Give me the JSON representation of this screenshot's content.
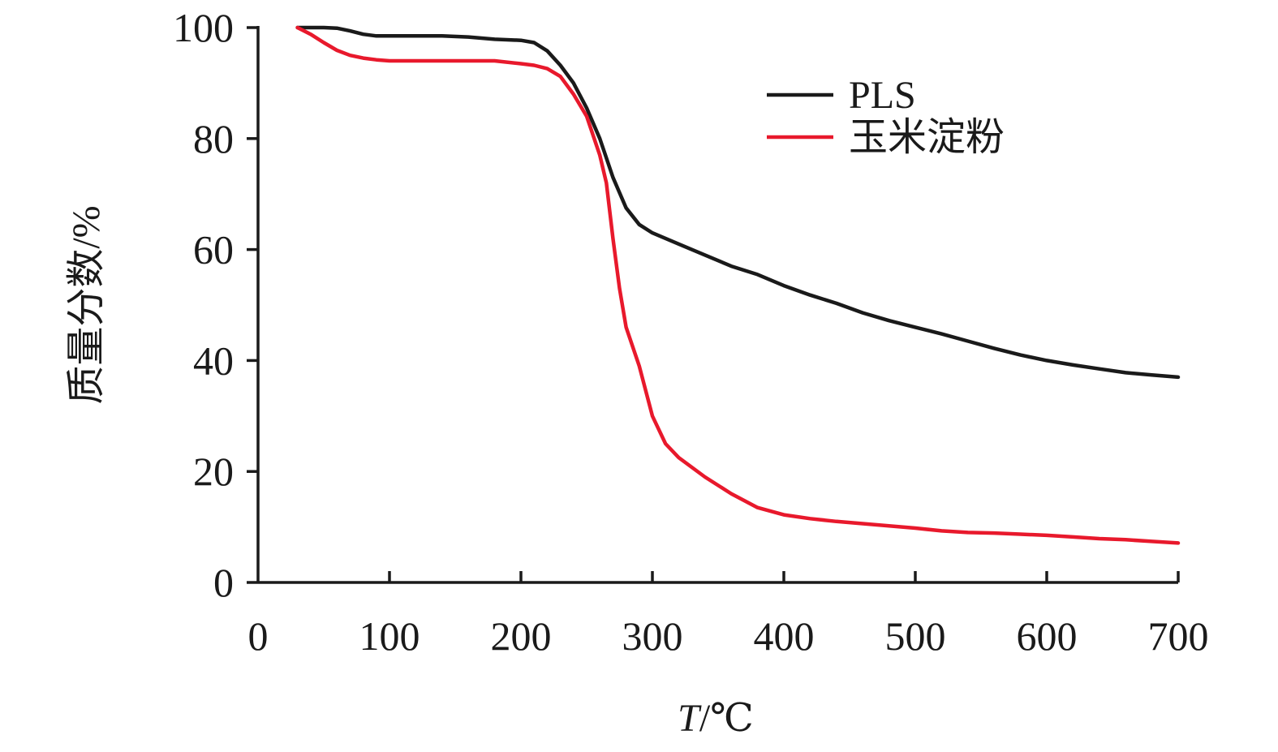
{
  "chart_data": {
    "type": "line",
    "xlabel": "T/℃",
    "ylabel": "质量分数/%",
    "xlim": [
      0,
      700
    ],
    "ylim": [
      0,
      100
    ],
    "xticks": [
      0,
      100,
      200,
      300,
      400,
      500,
      600,
      700
    ],
    "yticks": [
      0,
      20,
      40,
      60,
      80,
      100
    ],
    "grid": false,
    "legend": "top-right",
    "series": [
      {
        "name": "PLS",
        "color": "#1a1a1a",
        "x": [
          30,
          40,
          50,
          60,
          70,
          80,
          90,
          100,
          120,
          140,
          160,
          180,
          200,
          210,
          220,
          230,
          240,
          250,
          260,
          270,
          280,
          290,
          300,
          310,
          320,
          340,
          360,
          380,
          400,
          420,
          440,
          460,
          480,
          500,
          520,
          540,
          560,
          580,
          600,
          620,
          640,
          660,
          680,
          700
        ],
        "y": [
          100,
          100,
          100,
          99.9,
          99.4,
          98.8,
          98.5,
          98.5,
          98.5,
          98.5,
          98.3,
          97.9,
          97.7,
          97.3,
          95.8,
          93.2,
          90,
          85.5,
          80,
          73,
          67.5,
          64.5,
          63,
          62,
          61,
          59,
          57,
          55.5,
          53.5,
          51.8,
          50.3,
          48.6,
          47.2,
          46,
          44.8,
          43.5,
          42.2,
          41,
          40,
          39.2,
          38.5,
          37.8,
          37.4,
          37
        ]
      },
      {
        "name": "玉米淀粉",
        "color": "#e8192c",
        "x": [
          30,
          40,
          50,
          60,
          70,
          80,
          90,
          100,
          120,
          140,
          160,
          180,
          200,
          210,
          220,
          230,
          240,
          250,
          260,
          265,
          270,
          275,
          280,
          290,
          300,
          310,
          320,
          340,
          360,
          380,
          400,
          420,
          440,
          460,
          480,
          500,
          520,
          540,
          560,
          580,
          600,
          620,
          640,
          660,
          680,
          700
        ],
        "y": [
          100,
          98.8,
          97.3,
          95.9,
          95,
          94.5,
          94.2,
          94,
          94,
          94,
          94,
          94,
          93.5,
          93.2,
          92.6,
          91.2,
          88,
          84,
          77,
          72,
          62,
          53,
          46,
          39,
          30,
          25,
          22.5,
          19,
          16,
          13.5,
          12.2,
          11.5,
          11,
          10.6,
          10.2,
          9.8,
          9.3,
          9,
          8.9,
          8.7,
          8.5,
          8.2,
          7.9,
          7.7,
          7.4,
          7.1
        ]
      }
    ]
  }
}
